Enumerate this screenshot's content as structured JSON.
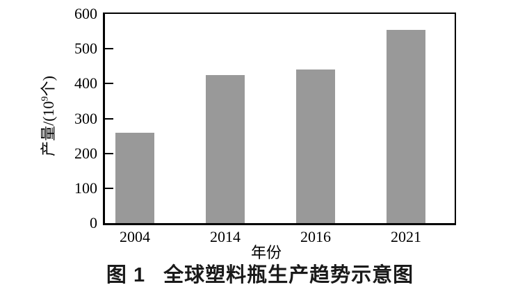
{
  "figure": {
    "caption_prefix": "图 1",
    "caption_title": "全球塑料瓶生产趋势示意图"
  },
  "chart_data": {
    "type": "bar",
    "title": "图 1 全球塑料瓶生产趋势示意图",
    "categories": [
      "2004",
      "2014",
      "2016",
      "2021"
    ],
    "values": [
      260,
      425,
      440,
      555
    ],
    "xlabel": "年份",
    "ylabel": "产量/(10⁹个)",
    "ylabel_parts": {
      "prefix": "产量/(10",
      "sup": "9",
      "suffix": "个)"
    },
    "ylim": [
      0,
      600
    ],
    "y_ticks": [
      0,
      100,
      200,
      300,
      400,
      500,
      600
    ],
    "bar_color": "#999999",
    "axis_color": "#000000",
    "grid": false,
    "legend": null
  }
}
